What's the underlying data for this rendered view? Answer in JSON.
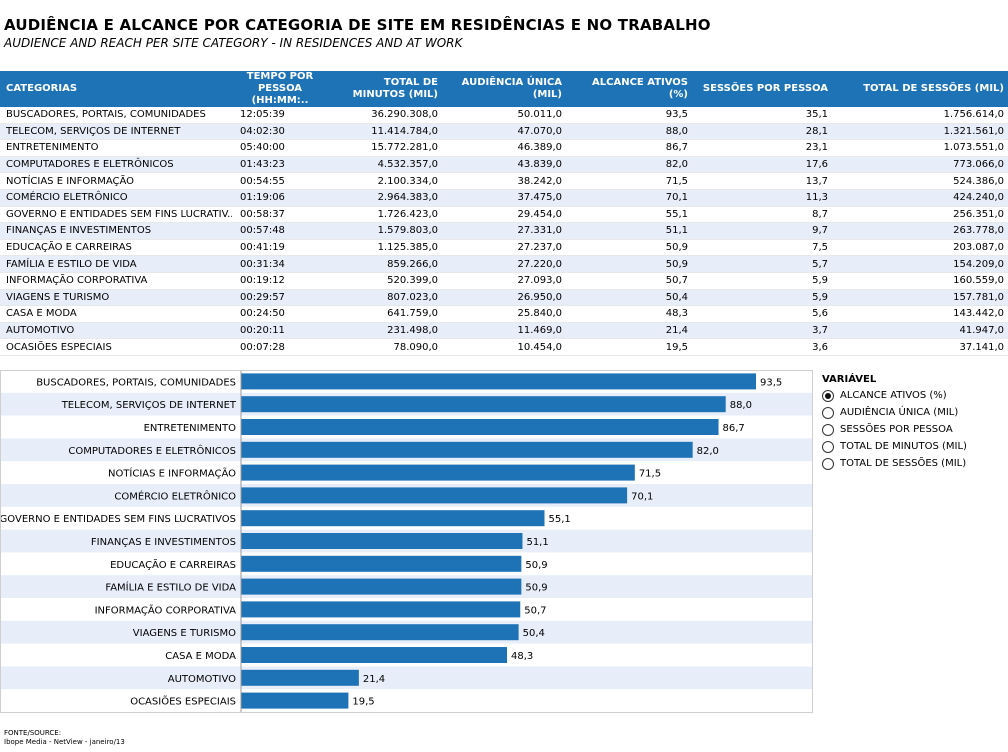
{
  "title": "AUDIÊNCIA E ALCANCE POR CATEGORIA DE SITE EM RESIDÊNCIAS E NO TRABALHO",
  "subtitle": "AUDIENCE AND REACH PER SITE CATEGORY - IN RESIDENCES AND AT WORK",
  "table": {
    "headers": [
      "CATEGORIAS",
      "TEMPO POR PESSOA (HH:MM:..",
      "TOTAL DE MINUTOS (MIL)",
      "AUDIÊNCIA ÚNICA (MIL)",
      "ALCANCE ATIVOS (%)",
      "SESSÕES POR PESSOA",
      "TOTAL DE SESSÕES (MIL)"
    ],
    "rows": [
      [
        "BUSCADORES, PORTAIS, COMUNIDADES",
        "12:05:39",
        "36.290.308,0",
        "50.011,0",
        "93,5",
        "35,1",
        "1.756.614,0"
      ],
      [
        "TELECOM, SERVIÇOS DE INTERNET",
        "04:02:30",
        "11.414.784,0",
        "47.070,0",
        "88,0",
        "28,1",
        "1.321.561,0"
      ],
      [
        "ENTRETENIMENTO",
        "05:40:00",
        "15.772.281,0",
        "46.389,0",
        "86,7",
        "23,1",
        "1.073.551,0"
      ],
      [
        "COMPUTADORES E ELETRÔNICOS",
        "01:43:23",
        "4.532.357,0",
        "43.839,0",
        "82,0",
        "17,6",
        "773.066,0"
      ],
      [
        "NOTÍCIAS E INFORMAÇÃO",
        "00:54:55",
        "2.100.334,0",
        "38.242,0",
        "71,5",
        "13,7",
        "524.386,0"
      ],
      [
        "COMÉRCIO ELETRÔNICO",
        "01:19:06",
        "2.964.383,0",
        "37.475,0",
        "70,1",
        "11,3",
        "424.240,0"
      ],
      [
        "GOVERNO E ENTIDADES SEM FINS LUCRATIV..",
        "00:58:37",
        "1.726.423,0",
        "29.454,0",
        "55,1",
        "8,7",
        "256.351,0"
      ],
      [
        "FINANÇAS E INVESTIMENTOS",
        "00:57:48",
        "1.579.803,0",
        "27.331,0",
        "51,1",
        "9,7",
        "263.778,0"
      ],
      [
        "EDUCAÇÃO E CARREIRAS",
        "00:41:19",
        "1.125.385,0",
        "27.237,0",
        "50,9",
        "7,5",
        "203.087,0"
      ],
      [
        "FAMÍLIA E ESTILO DE VIDA",
        "00:31:34",
        "859.266,0",
        "27.220,0",
        "50,9",
        "5,7",
        "154.209,0"
      ],
      [
        "INFORMAÇÃO CORPORATIVA",
        "00:19:12",
        "520.399,0",
        "27.093,0",
        "50,7",
        "5,9",
        "160.559,0"
      ],
      [
        "VIAGENS E TURISMO",
        "00:29:57",
        "807.023,0",
        "26.950,0",
        "50,4",
        "5,9",
        "157.781,0"
      ],
      [
        "CASA E MODA",
        "00:24:50",
        "641.759,0",
        "25.840,0",
        "48,3",
        "5,6",
        "143.442,0"
      ],
      [
        "AUTOMOTIVO",
        "00:20:11",
        "231.498,0",
        "11.469,0",
        "21,4",
        "3,7",
        "41.947,0"
      ],
      [
        "OCASIÕES ESPECIAIS",
        "00:07:28",
        "78.090,0",
        "10.454,0",
        "19,5",
        "3,6",
        "37.141,0"
      ]
    ]
  },
  "chart_data": {
    "type": "bar",
    "orientation": "horizontal",
    "categories": [
      "BUSCADORES, PORTAIS, COMUNIDADES",
      "TELECOM, SERVIÇOS DE INTERNET",
      "ENTRETENIMENTO",
      "COMPUTADORES E ELETRÔNICOS",
      "NOTÍCIAS E INFORMAÇÃO",
      "COMÉRCIO ELETRÔNICO",
      "GOVERNO E ENTIDADES SEM FINS LUCRATIVOS",
      "FINANÇAS E INVESTIMENTOS",
      "EDUCAÇÃO E CARREIRAS",
      "FAMÍLIA E ESTILO DE VIDA",
      "INFORMAÇÃO CORPORATIVA",
      "VIAGENS E TURISMO",
      "CASA E MODA",
      "AUTOMOTIVO",
      "OCASIÕES ESPECIAIS"
    ],
    "values": [
      93.5,
      88.0,
      86.7,
      82.0,
      71.5,
      70.1,
      55.1,
      51.1,
      50.9,
      50.9,
      50.7,
      50.4,
      48.3,
      21.4,
      19.5
    ],
    "value_labels": [
      "93,5",
      "88,0",
      "86,7",
      "82,0",
      "71,5",
      "70,1",
      "55,1",
      "51,1",
      "50,9",
      "50,9",
      "50,7",
      "50,4",
      "48,3",
      "21,4",
      "19,5"
    ],
    "xlim": [
      0,
      100
    ],
    "grid": false,
    "bar_color": "#1e73b7",
    "stripe_color": "#e8eef9"
  },
  "legend": {
    "title": "VARIÁVEL",
    "options": [
      "ALCANCE ATIVOS (%)",
      "AUDIÊNCIA ÚNICA (MIL)",
      "SESSÕES POR PESSOA",
      "TOTAL DE MINUTOS (MIL)",
      "TOTAL DE SESSÕES (MIL)"
    ],
    "selected_index": 0
  },
  "source": {
    "label": "FONTE/SOURCE:",
    "text": "Ibope Media - NetView - janeiro/13"
  }
}
